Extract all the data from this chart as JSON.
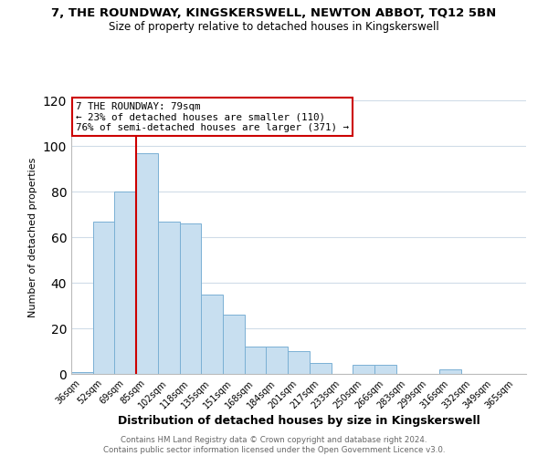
{
  "title": "7, THE ROUNDWAY, KINGSKERSWELL, NEWTON ABBOT, TQ12 5BN",
  "subtitle": "Size of property relative to detached houses in Kingskerswell",
  "xlabel": "Distribution of detached houses by size in Kingskerswell",
  "ylabel": "Number of detached properties",
  "bar_labels": [
    "36sqm",
    "52sqm",
    "69sqm",
    "85sqm",
    "102sqm",
    "118sqm",
    "135sqm",
    "151sqm",
    "168sqm",
    "184sqm",
    "201sqm",
    "217sqm",
    "233sqm",
    "250sqm",
    "266sqm",
    "283sqm",
    "299sqm",
    "316sqm",
    "332sqm",
    "349sqm",
    "365sqm"
  ],
  "bar_values": [
    1,
    67,
    80,
    97,
    67,
    66,
    35,
    26,
    12,
    12,
    10,
    5,
    0,
    4,
    4,
    0,
    0,
    2,
    0,
    0,
    0
  ],
  "bar_color": "#c8dff0",
  "bar_edge_color": "#7ab0d4",
  "ylim": [
    0,
    120
  ],
  "yticks": [
    0,
    20,
    40,
    60,
    80,
    100,
    120
  ],
  "vline_x": 2.5,
  "vline_color": "#cc0000",
  "annotation_title": "7 THE ROUNDWAY: 79sqm",
  "annotation_line1": "← 23% of detached houses are smaller (110)",
  "annotation_line2": "76% of semi-detached houses are larger (371) →",
  "annotation_box_color": "#ffffff",
  "annotation_box_edge": "#cc0000",
  "footer1": "Contains HM Land Registry data © Crown copyright and database right 2024.",
  "footer2": "Contains public sector information licensed under the Open Government Licence v3.0.",
  "background_color": "#ffffff",
  "grid_color": "#d0dce8"
}
